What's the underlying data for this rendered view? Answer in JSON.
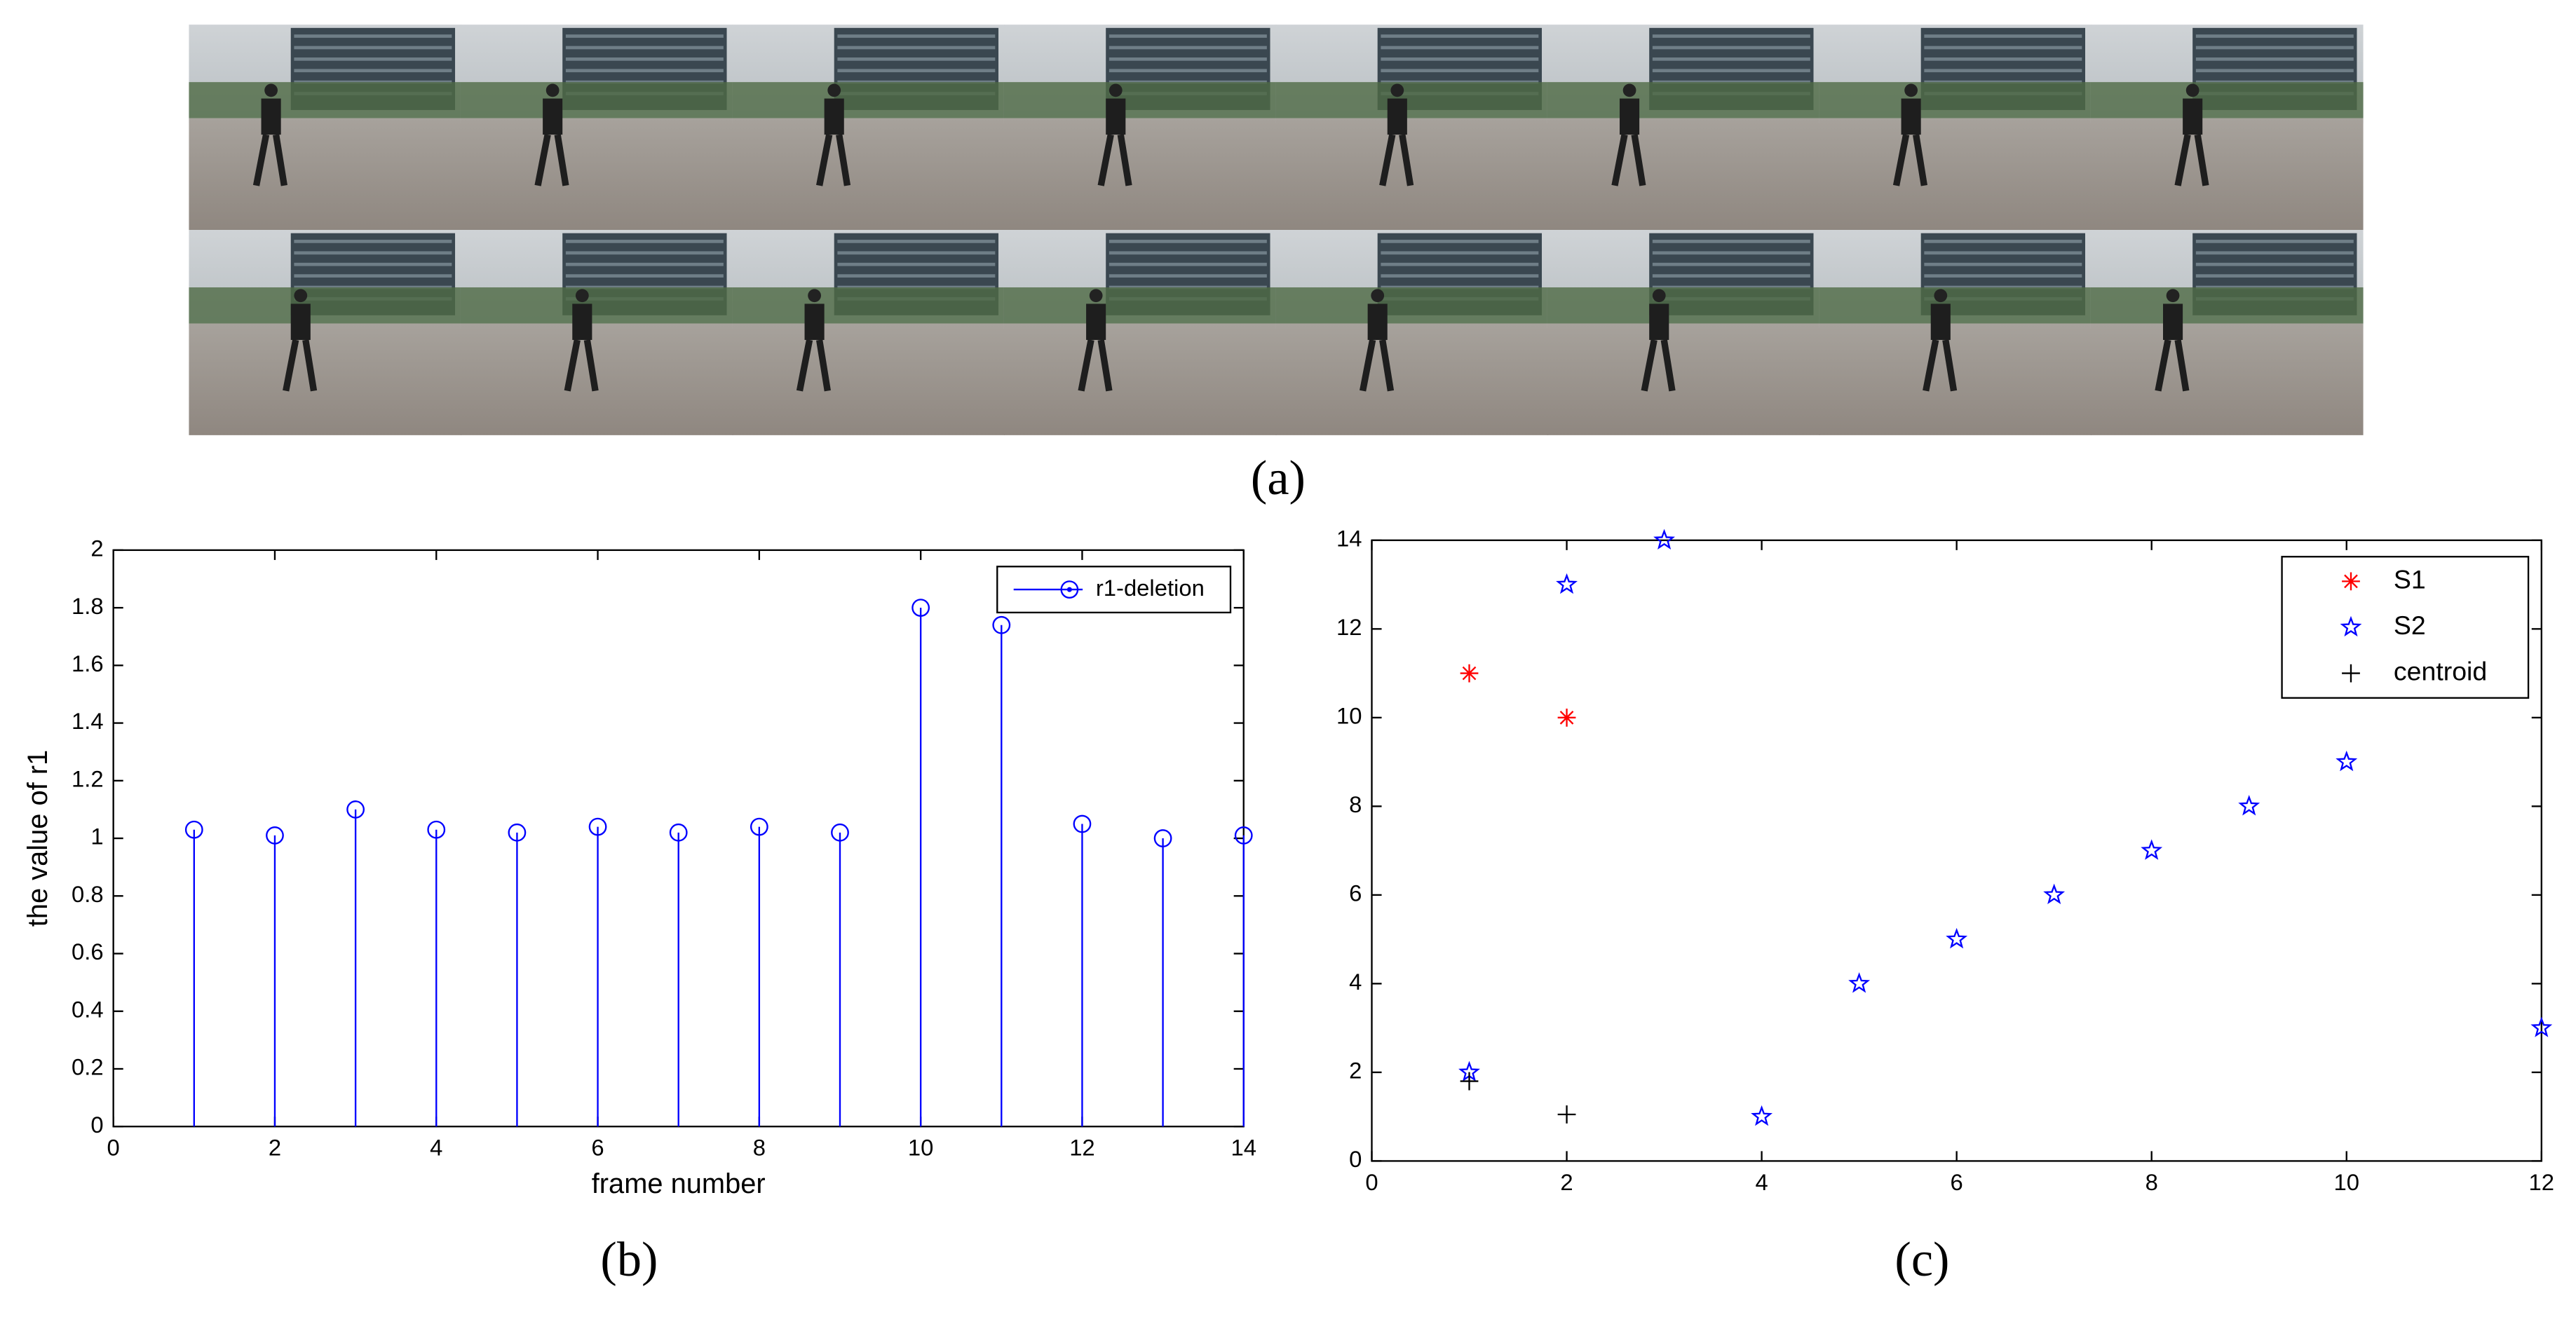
{
  "image_strip": {
    "caption": "(a)"
  },
  "chart_data": [
    {
      "type": "stem",
      "caption": "(b)",
      "x_label": "frame number",
      "y_label": "the value of r1",
      "x": [
        1,
        2,
        3,
        4,
        5,
        6,
        7,
        8,
        9,
        10,
        11,
        12,
        13,
        14
      ],
      "series": [
        {
          "name": "r1-deletion",
          "color": "#0000ff",
          "values": [
            1.03,
            1.01,
            1.1,
            1.03,
            1.02,
            1.04,
            1.02,
            1.04,
            1.02,
            1.8,
            1.74,
            1.05,
            1.0,
            1.01
          ]
        }
      ],
      "xlim": [
        0,
        14
      ],
      "ylim": [
        0,
        2
      ],
      "xticks": [
        0,
        2,
        4,
        6,
        8,
        10,
        12,
        14
      ],
      "yticks": [
        0,
        0.2,
        0.4,
        0.6,
        0.8,
        1,
        1.2,
        1.4,
        1.6,
        1.8,
        2
      ],
      "legend": "northeast"
    },
    {
      "type": "scatter",
      "caption": "(c)",
      "series": [
        {
          "name": "S1",
          "color": "#ff0000",
          "marker": "asterisk",
          "x": [
            1,
            2
          ],
          "values": [
            11,
            10
          ]
        },
        {
          "name": "S2",
          "color": "#0000ff",
          "marker": "star",
          "x": [
            1,
            2,
            3,
            4,
            5,
            6,
            7,
            8,
            9,
            10,
            12
          ],
          "values": [
            2,
            13,
            14,
            1,
            4,
            5,
            6,
            7,
            8,
            9,
            3
          ]
        },
        {
          "name": "centroid",
          "color": "#000000",
          "marker": "plus",
          "x": [
            1,
            2
          ],
          "values": [
            1.8,
            1.05
          ]
        }
      ],
      "xlim": [
        0,
        12
      ],
      "ylim": [
        0,
        14
      ],
      "xticks": [
        0,
        2,
        4,
        6,
        8,
        10,
        12
      ],
      "yticks": [
        0,
        2,
        4,
        6,
        8,
        10,
        12,
        14
      ],
      "legend": "northeast"
    }
  ]
}
